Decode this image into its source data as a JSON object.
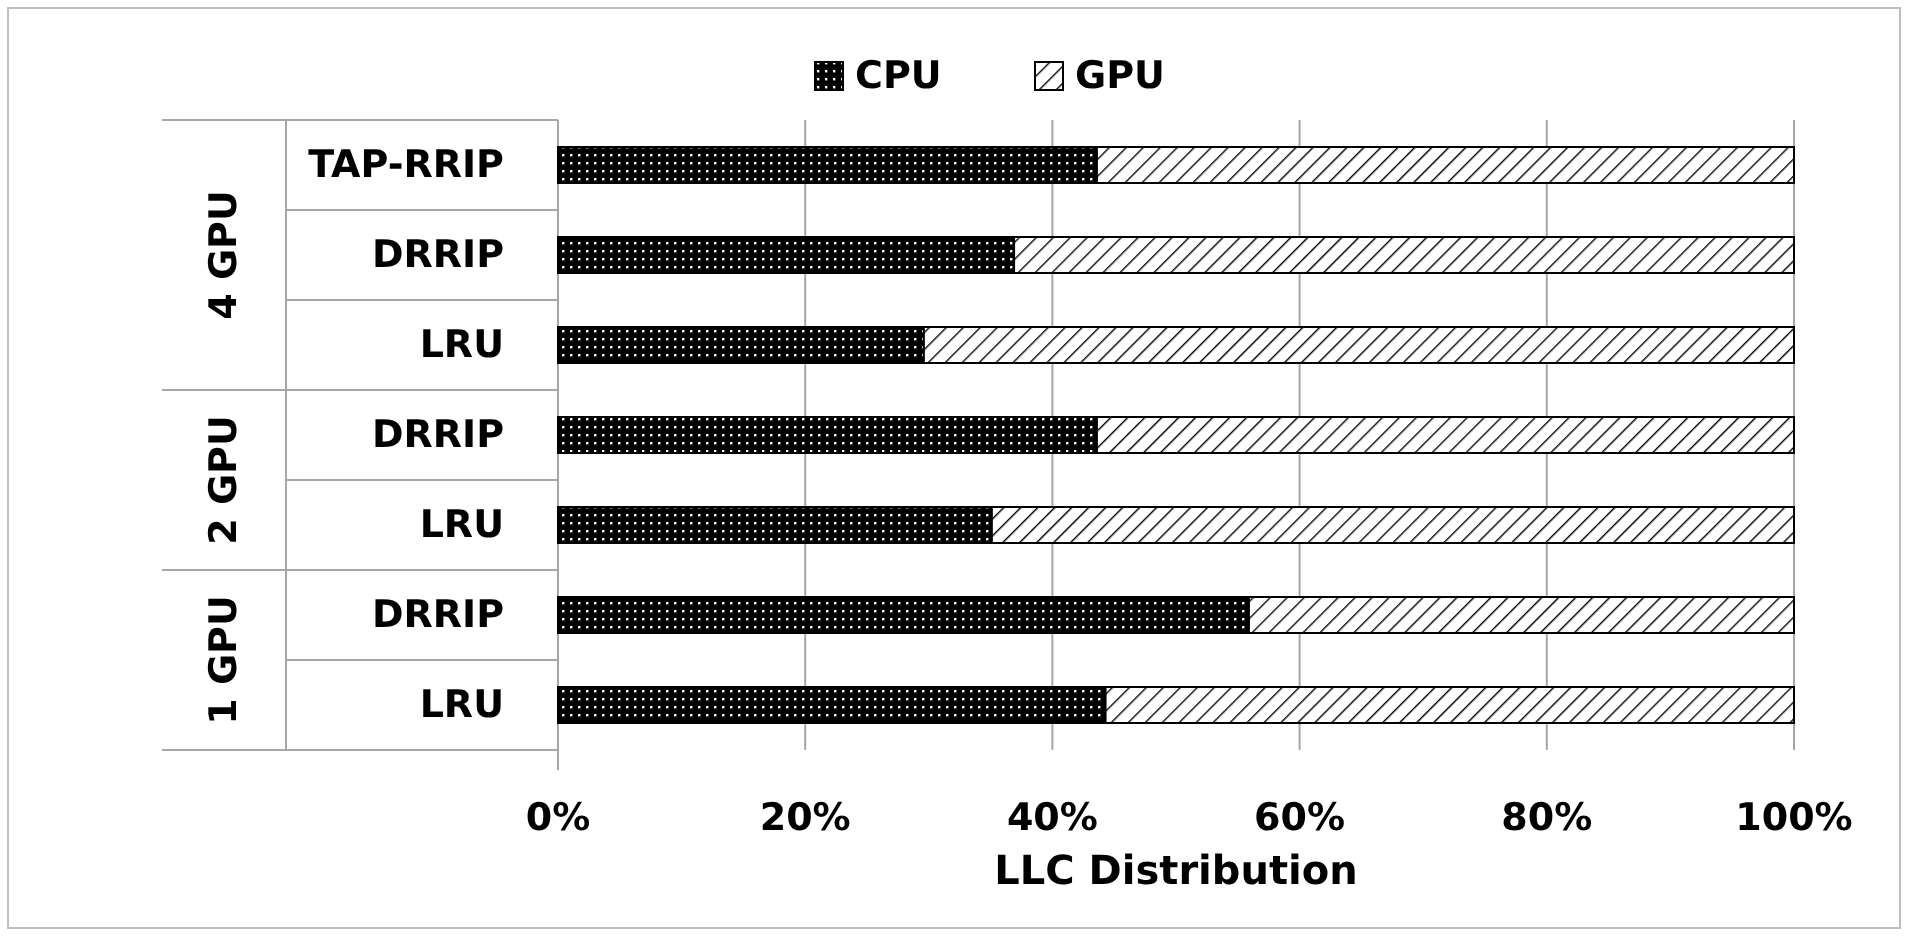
{
  "chart_data": {
    "type": "bar",
    "orientation": "horizontal",
    "stacked": true,
    "xlabel": "LLC Distribution",
    "categories": [
      "TAP-RRIP",
      "DRRIP",
      "LRU",
      "DRRIP",
      "LRU",
      "DRRIP",
      "LRU"
    ],
    "annotations": [
      "4 GPU",
      "2 GPU",
      "1 GPU"
    ],
    "series": [
      {
        "name": "CPU",
        "color": "#000000",
        "values": [
          43.6,
          36.9,
          29.6,
          43.6,
          35.1,
          55.9,
          44.3
        ]
      },
      {
        "name": "GPU",
        "color": "#000000",
        "values": [
          56.4,
          63.1,
          70.4,
          56.4,
          64.9,
          44.1,
          55.7
        ]
      }
    ],
    "xlim": [
      0,
      100
    ],
    "xticks": [
      {
        "value": 0,
        "label": "0%"
      },
      {
        "value": 20,
        "label": "20%"
      },
      {
        "value": 40,
        "label": "40%"
      },
      {
        "value": 60,
        "label": "60%"
      },
      {
        "value": 80,
        "label": "80%"
      },
      {
        "value": 100,
        "label": "100%"
      }
    ],
    "grid": "x",
    "legend": "top"
  }
}
